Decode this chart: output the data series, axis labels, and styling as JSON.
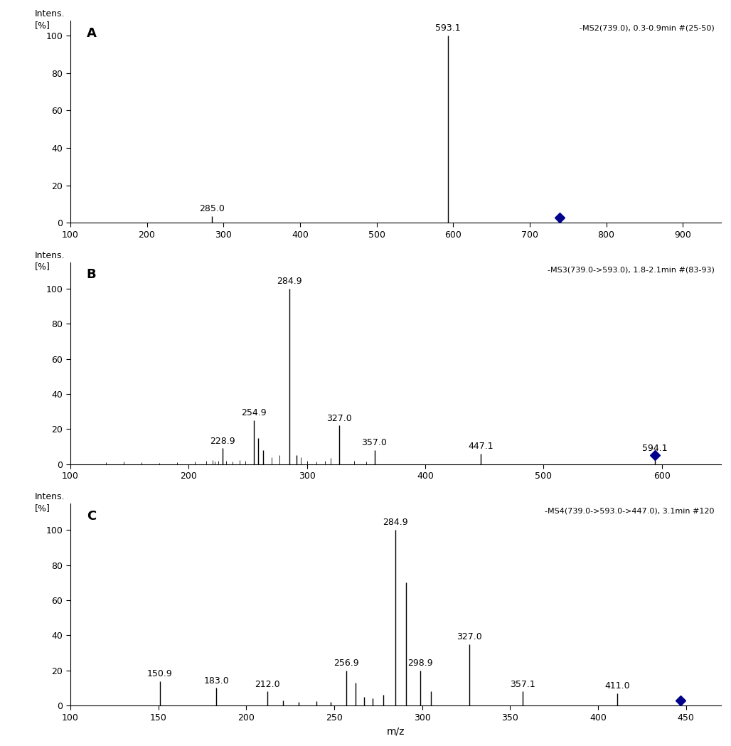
{
  "panels": [
    {
      "label": "A",
      "annotation": "-MS2(739.0), 0.3-0.9min #(25-50)",
      "xlim": [
        100,
        950
      ],
      "xticks": [
        100,
        200,
        300,
        400,
        500,
        600,
        700,
        800,
        900
      ],
      "ylim": [
        0,
        108
      ],
      "yticks": [
        0,
        20,
        40,
        60,
        80,
        100
      ],
      "peaks": [
        {
          "mz": 285.0,
          "intensity": 3.5,
          "label": "285.0"
        },
        {
          "mz": 593.1,
          "intensity": 100.0,
          "label": "593.1"
        }
      ],
      "noise": [],
      "diamond": {
        "mz": 739.0,
        "intensity": 2.8,
        "color": "#00008B"
      }
    },
    {
      "label": "B",
      "annotation": "-MS3(739.0->593.0), 1.8-2.1min #(83-93)",
      "xlim": [
        100,
        650
      ],
      "xticks": [
        100,
        200,
        300,
        400,
        500,
        600
      ],
      "ylim": [
        0,
        115
      ],
      "yticks": [
        0,
        20,
        40,
        60,
        80,
        100
      ],
      "peaks": [
        {
          "mz": 228.9,
          "intensity": 9.0,
          "label": "228.9"
        },
        {
          "mz": 254.9,
          "intensity": 25.0,
          "label": "254.9"
        },
        {
          "mz": 259.0,
          "intensity": 15.0,
          "label": null
        },
        {
          "mz": 263.0,
          "intensity": 8.0,
          "label": null
        },
        {
          "mz": 284.9,
          "intensity": 100.0,
          "label": "284.9"
        },
        {
          "mz": 291.0,
          "intensity": 5.0,
          "label": null
        },
        {
          "mz": 327.0,
          "intensity": 22.0,
          "label": "327.0"
        },
        {
          "mz": 357.0,
          "intensity": 8.0,
          "label": "357.0"
        },
        {
          "mz": 447.1,
          "intensity": 6.0,
          "label": "447.1"
        },
        {
          "mz": 594.1,
          "intensity": 5.0,
          "label": "594.1"
        }
      ],
      "noise": [
        {
          "mz": 130,
          "intensity": 1.0
        },
        {
          "mz": 145,
          "intensity": 1.5
        },
        {
          "mz": 160,
          "intensity": 1.0
        },
        {
          "mz": 175,
          "intensity": 0.8
        },
        {
          "mz": 190,
          "intensity": 1.2
        },
        {
          "mz": 205,
          "intensity": 1.5
        },
        {
          "mz": 215,
          "intensity": 1.8
        },
        {
          "mz": 220,
          "intensity": 2.5
        },
        {
          "mz": 222,
          "intensity": 1.5
        },
        {
          "mz": 225,
          "intensity": 2.0
        },
        {
          "mz": 232,
          "intensity": 2.0
        },
        {
          "mz": 237,
          "intensity": 1.5
        },
        {
          "mz": 243,
          "intensity": 2.5
        },
        {
          "mz": 248,
          "intensity": 2.0
        },
        {
          "mz": 270,
          "intensity": 4.0
        },
        {
          "mz": 277,
          "intensity": 5.0
        },
        {
          "mz": 295,
          "intensity": 4.0
        },
        {
          "mz": 300,
          "intensity": 2.0
        },
        {
          "mz": 308,
          "intensity": 1.5
        },
        {
          "mz": 315,
          "intensity": 2.0
        },
        {
          "mz": 320,
          "intensity": 3.5
        },
        {
          "mz": 340,
          "intensity": 2.0
        },
        {
          "mz": 350,
          "intensity": 1.5
        }
      ],
      "diamond": {
        "mz": 594.1,
        "intensity": 5.0,
        "color": "#00008B"
      }
    },
    {
      "label": "C",
      "annotation": "-MS4(739.0->593.0->447.0), 3.1min #120",
      "xlim": [
        100,
        470
      ],
      "xticks": [
        100,
        150,
        200,
        250,
        300,
        350,
        400,
        450
      ],
      "ylim": [
        0,
        115
      ],
      "yticks": [
        0,
        20,
        40,
        60,
        80,
        100
      ],
      "peaks": [
        {
          "mz": 150.9,
          "intensity": 14.0,
          "label": "150.9"
        },
        {
          "mz": 183.0,
          "intensity": 10.0,
          "label": "183.0"
        },
        {
          "mz": 212.0,
          "intensity": 8.0,
          "label": "212.0"
        },
        {
          "mz": 221.0,
          "intensity": 3.0,
          "label": null
        },
        {
          "mz": 230.0,
          "intensity": 2.0,
          "label": null
        },
        {
          "mz": 240.0,
          "intensity": 2.5,
          "label": null
        },
        {
          "mz": 248.0,
          "intensity": 2.0,
          "label": null
        },
        {
          "mz": 256.9,
          "intensity": 20.0,
          "label": "256.9"
        },
        {
          "mz": 262.0,
          "intensity": 13.0,
          "label": null
        },
        {
          "mz": 267.0,
          "intensity": 5.0,
          "label": null
        },
        {
          "mz": 272.0,
          "intensity": 4.0,
          "label": null
        },
        {
          "mz": 278.0,
          "intensity": 6.0,
          "label": null
        },
        {
          "mz": 284.9,
          "intensity": 100.0,
          "label": "284.9"
        },
        {
          "mz": 291.0,
          "intensity": 70.0,
          "label": null
        },
        {
          "mz": 298.9,
          "intensity": 20.0,
          "label": "298.9"
        },
        {
          "mz": 305.0,
          "intensity": 8.0,
          "label": null
        },
        {
          "mz": 327.0,
          "intensity": 35.0,
          "label": "327.0"
        },
        {
          "mz": 357.1,
          "intensity": 8.0,
          "label": "357.1"
        },
        {
          "mz": 411.0,
          "intensity": 7.0,
          "label": "411.0"
        },
        {
          "mz": 447.0,
          "intensity": 2.5,
          "label": null
        }
      ],
      "noise": [],
      "diamond": {
        "mz": 447.0,
        "intensity": 3.0,
        "color": "#00008B"
      }
    }
  ],
  "xlabel": "m/z",
  "bg_color": "#ffffff",
  "line_color": "#000000",
  "peak_label_fontsize": 9,
  "tick_fontsize": 9,
  "annot_fontsize": 8,
  "panel_label_fontsize": 13
}
